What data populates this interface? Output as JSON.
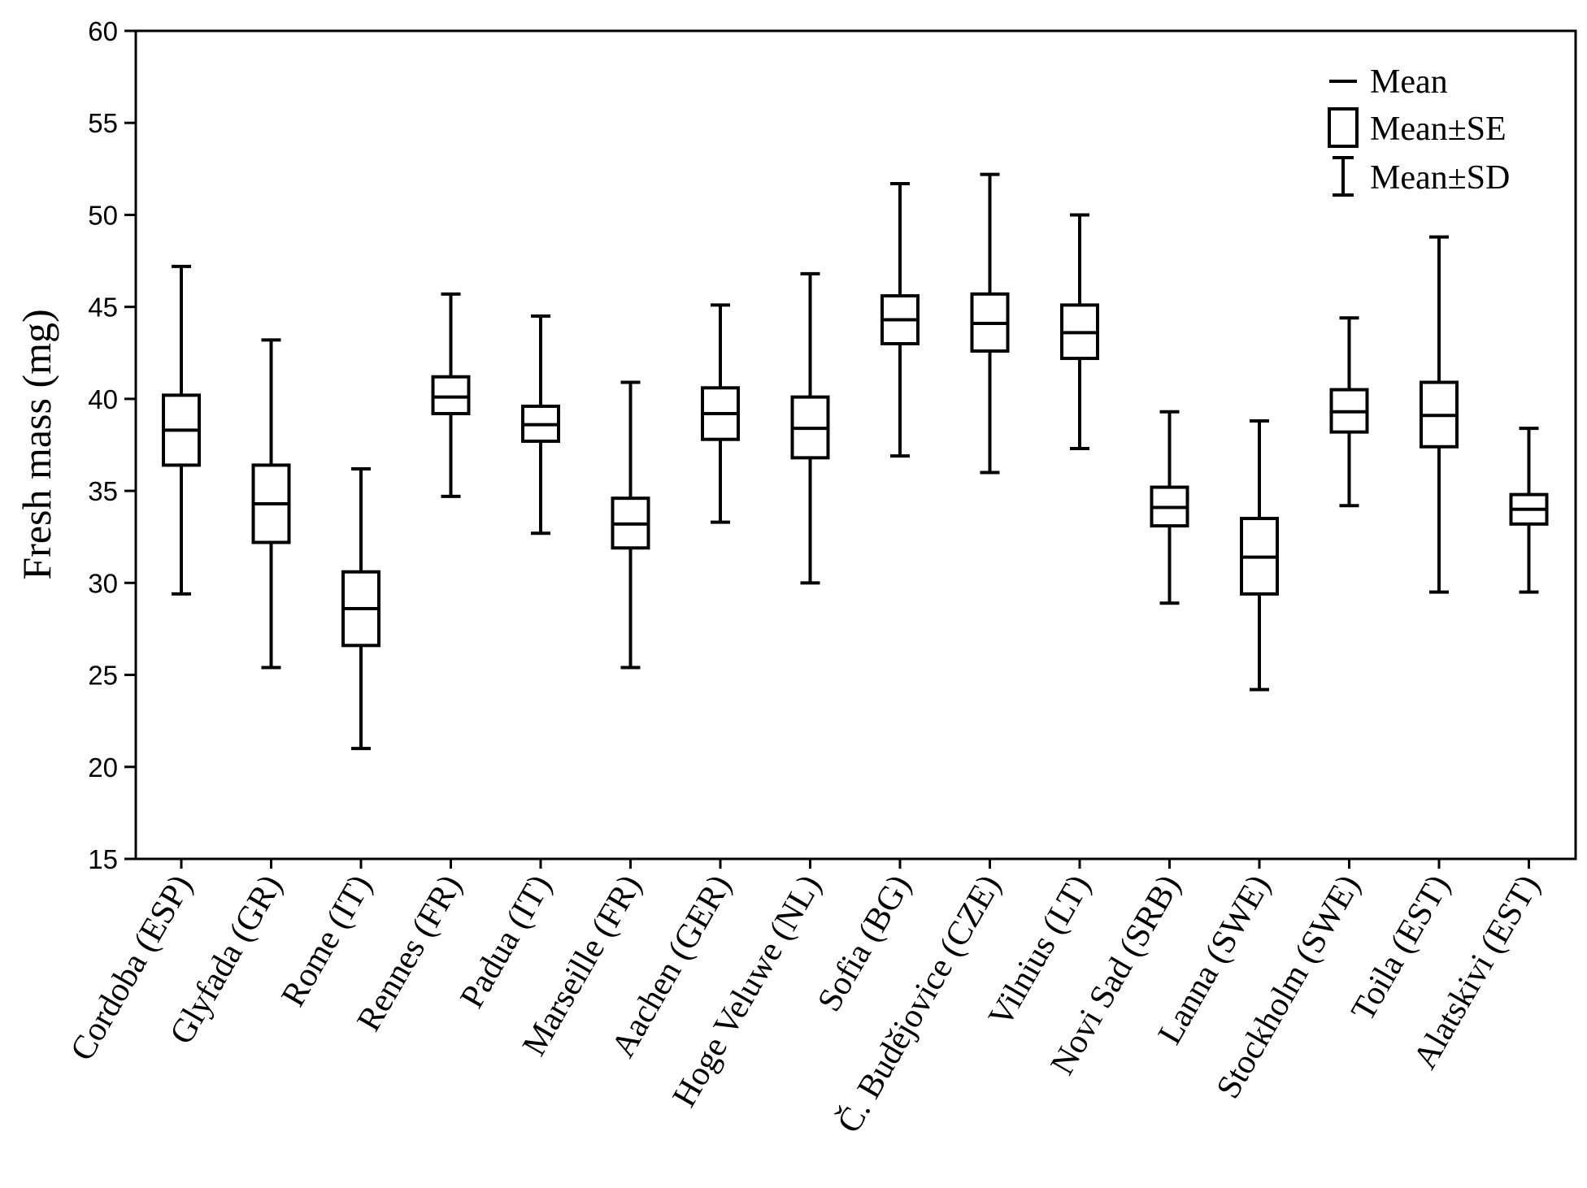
{
  "chart_data": {
    "type": "box",
    "title": "",
    "xlabel": "",
    "ylabel": "Fresh mass (mg)",
    "ylim": [
      15,
      60
    ],
    "yticks": [
      15,
      20,
      25,
      30,
      35,
      40,
      45,
      50,
      55,
      60
    ],
    "grid": false,
    "legend": {
      "placement": "top-right",
      "items": [
        {
          "symbol": "line",
          "label": "Mean"
        },
        {
          "symbol": "box",
          "label": "Mean±SE"
        },
        {
          "symbol": "whisker",
          "label": "Mean±SD"
        }
      ]
    },
    "categories": [
      "Cordoba (ESP)",
      "Glyfada (GR)",
      "Rome (IT)",
      "Rennes (FR)",
      "Padua (IT)",
      "Marseille (FR)",
      "Aachen (GER)",
      "Hoge Veluwe (NL)",
      "Sofia (BG)",
      "Č. Budějovice (CZE)",
      "Vilnius (LT)",
      "Novi Sad (SRB)",
      "Lanna (SWE)",
      "Stockholm (SWE)",
      "Toila (EST)",
      "Alatskivi (EST)"
    ],
    "series": [
      {
        "name": "Mean",
        "values": [
          38.3,
          34.3,
          28.6,
          40.1,
          38.6,
          33.2,
          39.2,
          38.4,
          44.3,
          44.1,
          43.6,
          34.1,
          31.4,
          39.3,
          39.1,
          34.0
        ]
      },
      {
        "name": "Mean-SE",
        "values": [
          36.4,
          32.2,
          26.6,
          39.2,
          37.7,
          31.9,
          37.8,
          36.8,
          43.0,
          42.6,
          42.2,
          33.1,
          29.4,
          38.2,
          37.4,
          33.2
        ]
      },
      {
        "name": "Mean+SE",
        "values": [
          40.2,
          36.4,
          30.6,
          41.2,
          39.6,
          34.6,
          40.6,
          40.1,
          45.6,
          45.7,
          45.1,
          35.2,
          33.5,
          40.5,
          40.9,
          34.8
        ]
      },
      {
        "name": "Mean-SD",
        "values": [
          29.4,
          25.4,
          21.0,
          34.7,
          32.7,
          25.4,
          33.3,
          30.0,
          36.9,
          36.0,
          37.3,
          28.9,
          24.2,
          34.2,
          29.5,
          29.5
        ]
      },
      {
        "name": "Mean+SD",
        "values": [
          47.2,
          43.2,
          36.2,
          45.7,
          44.5,
          40.9,
          45.1,
          46.8,
          51.7,
          52.2,
          50.0,
          39.3,
          38.8,
          44.4,
          48.8,
          38.4
        ]
      }
    ]
  }
}
